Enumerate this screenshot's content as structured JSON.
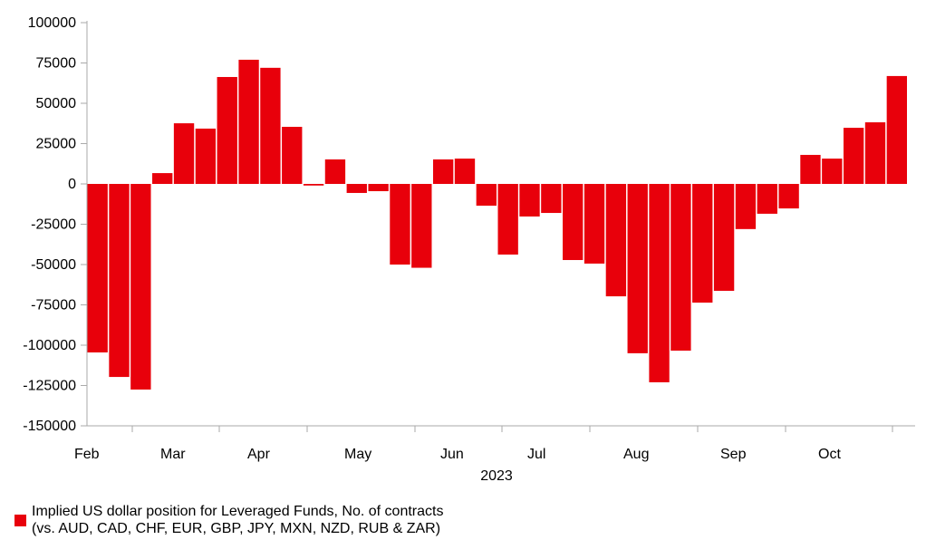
{
  "chart_data": {
    "type": "bar",
    "title": "",
    "xlabel": "2023",
    "ylabel": "",
    "ylim": [
      -150000,
      100000
    ],
    "yticks": [
      100000,
      75000,
      50000,
      25000,
      0,
      -25000,
      -50000,
      -75000,
      -100000,
      -125000,
      -150000
    ],
    "month_labels": [
      "Feb",
      "Mar",
      "Apr",
      "May",
      "Jun",
      "Jul",
      "Aug",
      "Sep",
      "Oct"
    ],
    "legend": {
      "line1": "Implied US dollar position for Leveraged Funds, No. of contracts",
      "line2": "(vs. AUD, CAD, CHF, EUR, GBP, JPY, MXN, NZD, RUB & ZAR)",
      "placement": "bottom-left"
    },
    "bar_color": "#e8000b",
    "series": [
      {
        "name": "Implied US dollar position for Leveraged Funds, No. of contracts",
        "values": [
          -104500,
          -119700,
          -127500,
          6700,
          37600,
          34300,
          66300,
          77000,
          72000,
          35400,
          -1000,
          15200,
          -5600,
          -4500,
          -50000,
          -52000,
          15200,
          15700,
          -13500,
          -43800,
          -20200,
          -18000,
          -47200,
          -49400,
          -69700,
          -105000,
          -123000,
          -103400,
          -73600,
          -66300,
          -28000,
          -18500,
          -15200,
          18000,
          15700,
          34800,
          38200,
          66900
        ]
      }
    ]
  }
}
